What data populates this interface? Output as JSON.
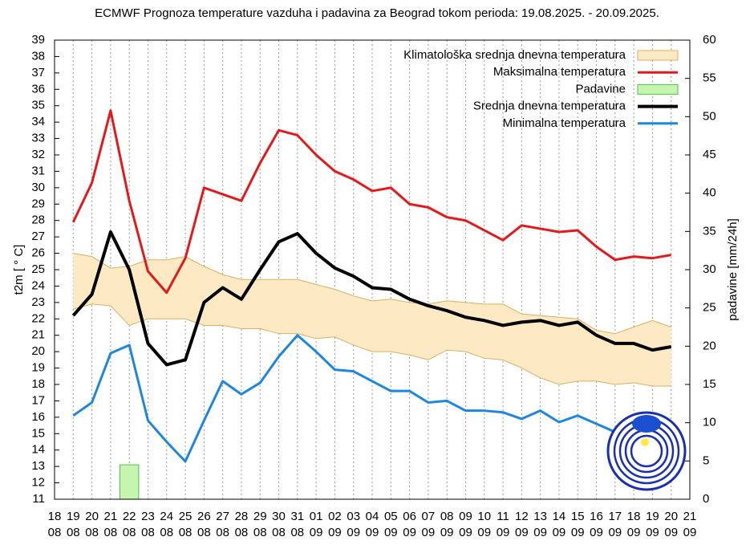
{
  "chart_data": {
    "type": "line",
    "title": "ECMWF Prognoza temperature vazduha i padavina za Beograd tokom perioda: 19.08.2025. - 20.09.2025.",
    "y_label": "t2m [ ° C]",
    "y2_label": "padavine [mm/24h]",
    "categories": [
      "18",
      "19",
      "20",
      "21",
      "22",
      "23",
      "24",
      "25",
      "26",
      "27",
      "28",
      "29",
      "30",
      "31",
      "01",
      "02",
      "03",
      "04",
      "05",
      "06",
      "07",
      "08",
      "09",
      "10",
      "11",
      "12",
      "13",
      "14",
      "15",
      "16",
      "17",
      "18",
      "19",
      "20",
      "21"
    ],
    "category_months": [
      "08",
      "08",
      "08",
      "08",
      "08",
      "08",
      "08",
      "08",
      "08",
      "08",
      "08",
      "08",
      "08",
      "08",
      "09",
      "09",
      "09",
      "09",
      "09",
      "09",
      "09",
      "09",
      "09",
      "09",
      "09",
      "09",
      "09",
      "09",
      "09",
      "09",
      "09",
      "09",
      "09",
      "09",
      "09"
    ],
    "ylim": [
      11,
      39
    ],
    "yticks": [
      11,
      12,
      13,
      14,
      15,
      16,
      17,
      18,
      19,
      20,
      21,
      22,
      23,
      24,
      25,
      26,
      27,
      28,
      29,
      30,
      31,
      32,
      33,
      34,
      35,
      36,
      37,
      38,
      39
    ],
    "y2lim": [
      0,
      60
    ],
    "y2ticks": [
      0,
      5,
      10,
      15,
      20,
      25,
      30,
      35,
      40,
      45,
      50,
      55,
      60
    ],
    "legend": "upper-right",
    "series": [
      {
        "name": "Klimatološka srednja dnevna temperatura",
        "kind": "band",
        "color": "#fde9c4",
        "edge_color": "#d9b060",
        "upper": [
          null,
          26.0,
          25.8,
          25.1,
          25.2,
          25.6,
          25.6,
          25.8,
          25.2,
          24.7,
          24.4,
          24.4,
          24.4,
          24.4,
          24.1,
          23.8,
          23.4,
          23.1,
          23.2,
          23.0,
          22.9,
          23.1,
          23.0,
          22.9,
          22.9,
          22.3,
          22.2,
          22.1,
          22.0,
          21.3,
          21.1,
          21.5,
          21.9,
          21.5,
          null
        ],
        "lower": [
          null,
          22.6,
          22.9,
          22.8,
          21.6,
          22.0,
          22.0,
          22.0,
          21.6,
          21.6,
          21.4,
          21.4,
          21.1,
          21.1,
          20.8,
          20.9,
          20.4,
          20.0,
          20.0,
          19.8,
          19.5,
          20.1,
          20.0,
          19.6,
          19.5,
          19.0,
          18.4,
          18.0,
          18.2,
          18.2,
          18.0,
          18.1,
          17.9,
          17.9,
          null
        ]
      },
      {
        "name": "Maksimalna temperatura",
        "kind": "line",
        "color": "#e31a1c",
        "width": 3,
        "values": [
          null,
          27.9,
          30.3,
          34.7,
          29.2,
          24.9,
          23.6,
          25.7,
          30.0,
          29.6,
          29.2,
          31.5,
          33.5,
          33.2,
          32.0,
          31.0,
          30.5,
          29.8,
          30.0,
          29.0,
          28.8,
          28.2,
          28.0,
          27.4,
          26.8,
          27.7,
          27.5,
          27.3,
          27.4,
          26.4,
          25.6,
          25.8,
          25.7,
          25.9,
          null
        ]
      },
      {
        "name": "Padavine",
        "kind": "bar",
        "axis": "y2",
        "color": "#c6f5b0",
        "edge_color": "#4cc24c",
        "values": [
          null,
          0,
          0,
          0,
          4.5,
          0,
          0,
          0,
          0,
          0,
          0,
          0,
          0,
          0,
          0,
          0,
          0,
          0,
          0,
          0,
          0,
          0,
          0,
          0,
          0,
          0,
          0,
          0,
          0,
          0,
          0,
          0,
          0,
          0,
          null
        ]
      },
      {
        "name": "Srednja dnevna temperatura",
        "kind": "line",
        "color": "#000000",
        "width": 4,
        "values": [
          null,
          22.2,
          23.5,
          27.3,
          25.0,
          20.5,
          19.2,
          19.5,
          23.0,
          23.9,
          23.2,
          25.0,
          26.7,
          27.2,
          26.0,
          25.1,
          24.6,
          23.9,
          23.8,
          23.2,
          22.8,
          22.5,
          22.1,
          21.9,
          21.6,
          21.8,
          21.9,
          21.6,
          21.8,
          21.0,
          20.5,
          20.5,
          20.1,
          20.3,
          null
        ]
      },
      {
        "name": "Minimalna temperatura",
        "kind": "line",
        "color": "#1f86e0",
        "width": 3,
        "values": [
          null,
          16.1,
          16.9,
          19.9,
          20.4,
          15.8,
          14.5,
          13.3,
          15.8,
          18.2,
          17.4,
          18.1,
          19.7,
          21.0,
          20.0,
          18.9,
          18.8,
          18.2,
          17.6,
          17.6,
          16.9,
          17.0,
          16.4,
          16.4,
          16.3,
          15.9,
          16.4,
          15.7,
          16.1,
          15.6,
          15.1,
          14.8,
          14.6,
          14.6,
          null
        ]
      }
    ]
  }
}
